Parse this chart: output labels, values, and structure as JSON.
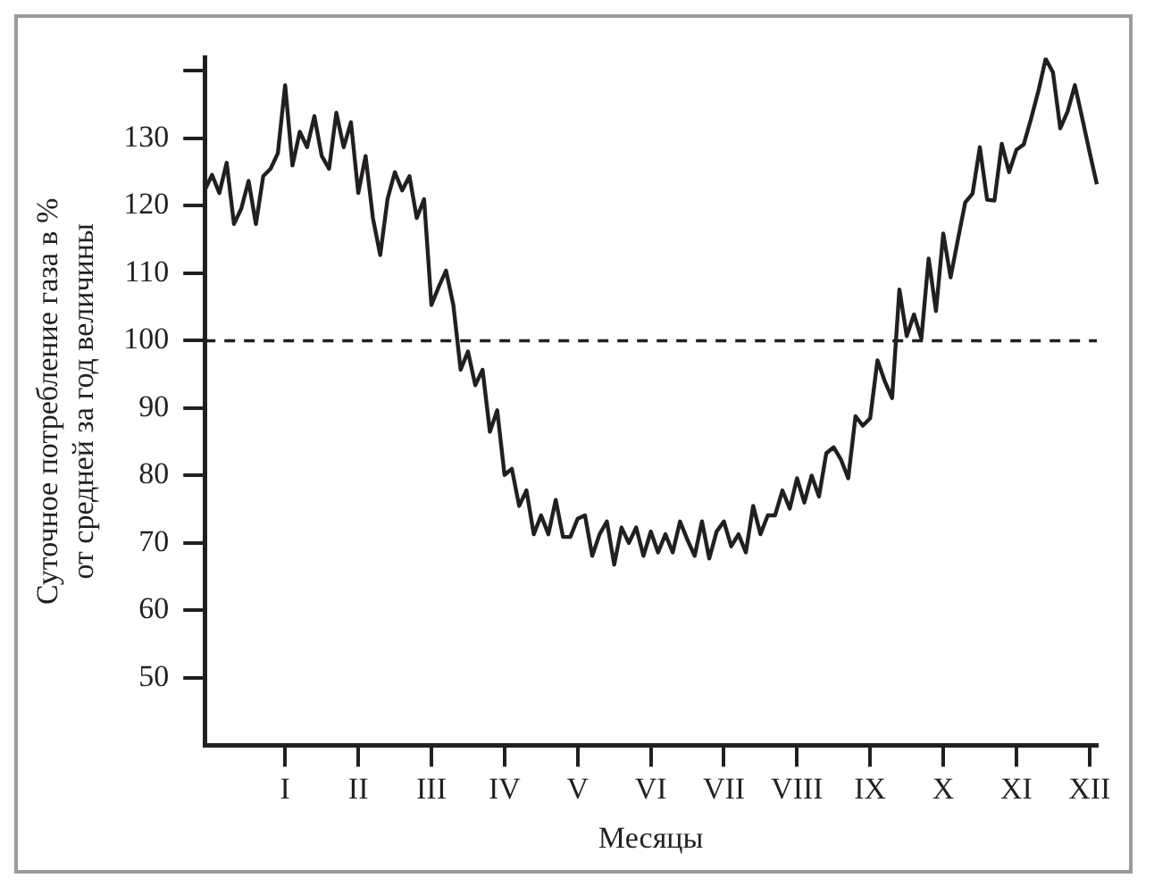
{
  "chart_data": {
    "type": "line",
    "xlabel": "Месяцы",
    "ylabel": "Суточное потребление газа в %\nот средней за год величины",
    "categories": [
      null,
      null,
      null,
      null,
      null,
      null,
      null,
      null,
      null,
      null,
      null,
      "I",
      null,
      null,
      null,
      null,
      null,
      null,
      null,
      null,
      null,
      "II",
      null,
      null,
      null,
      null,
      null,
      null,
      null,
      null,
      null,
      "III",
      null,
      null,
      null,
      null,
      null,
      null,
      null,
      null,
      null,
      "IV",
      null,
      null,
      null,
      null,
      null,
      null,
      null,
      null,
      null,
      "V",
      null,
      null,
      null,
      null,
      null,
      null,
      null,
      null,
      null,
      "VI",
      null,
      null,
      null,
      null,
      null,
      null,
      null,
      null,
      null,
      "VII",
      null,
      null,
      null,
      null,
      null,
      null,
      null,
      null,
      null,
      "VIII",
      null,
      null,
      null,
      null,
      null,
      null,
      null,
      null,
      null,
      "IX",
      null,
      null,
      null,
      null,
      null,
      null,
      null,
      null,
      null,
      "X",
      null,
      null,
      null,
      null,
      null,
      null,
      null,
      null,
      null,
      "XI",
      null,
      null,
      null,
      null,
      null,
      null,
      null,
      null,
      null,
      "XII",
      null
    ],
    "ylim": [
      40,
      142
    ],
    "yticks": [
      50,
      60,
      70,
      80,
      90,
      100,
      110,
      120,
      130,
      {
        "value": 140,
        "label": null
      }
    ],
    "grid": false,
    "legend": false,
    "marker": "none",
    "line_style": "solid",
    "ref_lines": [
      {
        "axis": "y",
        "value": 100,
        "line_style": "dashed",
        "color": "#231f20"
      }
    ],
    "series": [
      {
        "color": "#231f20",
        "values": [
          122.3,
          124.6,
          121.9,
          126.4,
          117.3,
          119.6,
          123.7,
          117.3,
          124.4,
          125.5,
          127.8,
          137.9,
          126.0,
          131.0,
          128.7,
          133.3,
          127.4,
          125.5,
          133.8,
          128.7,
          132.4,
          121.9,
          127.4,
          118.2,
          112.7,
          121.0,
          125.0,
          122.3,
          124.4,
          118.2,
          121.0,
          105.3,
          108,
          110.4,
          105.3,
          95.7,
          98.4,
          93.4,
          95.7,
          86.5,
          89.7,
          80.1,
          81.0,
          75.5,
          77.8,
          71.3,
          74.1,
          71.3,
          76.4,
          70.9,
          70.9,
          73.6,
          74.1,
          68.1,
          71.3,
          73.2,
          66.8,
          72.3,
          70.0,
          72.3,
          68.1,
          71.7,
          68.6,
          71.3,
          68.6,
          73.2,
          70.5,
          68.1,
          73.2,
          67.7,
          71.7,
          73.2,
          69.5,
          71.3,
          68.6,
          75.5,
          71.3,
          74.1,
          74.1,
          77.8,
          75.1,
          79.6,
          76.0,
          80.0,
          76.9,
          83.3,
          84.2,
          82.4,
          79.6,
          88.8,
          87.4,
          88.5,
          97.1,
          94,
          91.5,
          107.6,
          100.7,
          103.9,
          100.3,
          112.2,
          104.4,
          115.9,
          109.4,
          115.0,
          120.5,
          121.8,
          128.7,
          120.9,
          120.8,
          129.2,
          125.0,
          128.3,
          129.1,
          132.9,
          137.0,
          141.8,
          139.8,
          131.5,
          134,
          137.9,
          133,
          128,
          123.2
        ]
      }
    ]
  }
}
